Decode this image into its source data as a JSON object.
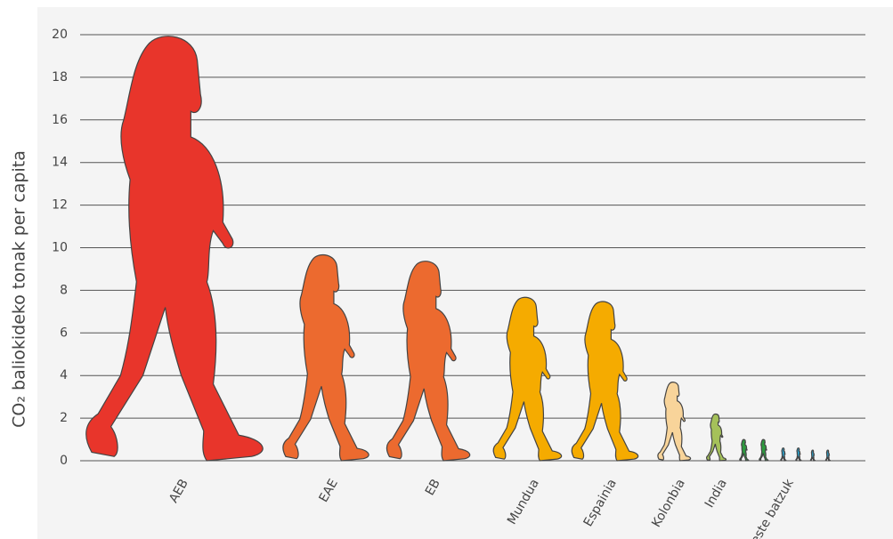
{
  "chart_data": {
    "type": "pictograph",
    "y_label": "CO₂ baliokideko tonak per capita",
    "categories": [
      "AEB",
      "EAE",
      "EB",
      "Mundua",
      "Espainia",
      "Kolonbia",
      "India",
      null,
      null,
      "Beste batzuk",
      null,
      null,
      null
    ],
    "values": [
      20,
      9.7,
      9.4,
      7.7,
      7.5,
      3.7,
      2.2,
      1.0,
      1.0,
      0.6,
      0.6,
      0.5,
      0.5
    ],
    "colors": [
      "#e8352b",
      "#ec6a2f",
      "#ec6a2f",
      "#f5ab00",
      "#f5ab00",
      "#f8d49a",
      "#a5c15a",
      "#2e9a3f",
      "#2e9a3f",
      "#2a9fc9",
      "#2a9fc9",
      "#2a9fc9",
      "#2a9fc9"
    ],
    "ylim": [
      0,
      20
    ],
    "yticks": [
      0,
      2,
      4,
      6,
      8,
      10,
      12,
      14,
      16,
      18,
      20
    ],
    "grid": true
  }
}
